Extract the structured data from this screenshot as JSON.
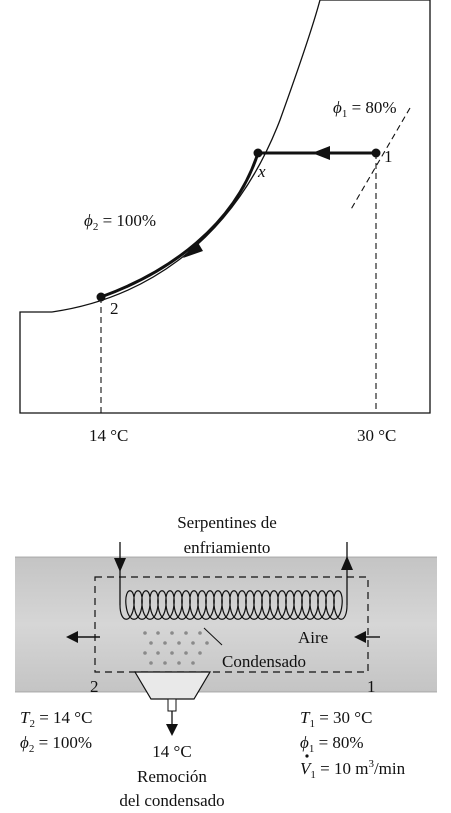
{
  "chart": {
    "phi1_symbol": "ϕ",
    "phi1_sub": "1",
    "phi1_eq": " = 80%",
    "phi2_symbol": "ϕ",
    "phi2_sub": "2",
    "phi2_eq": " = 100%",
    "state1_label": "1",
    "state2_label": "2",
    "state_x_label": "x",
    "temp_low": "14 °C",
    "temp_high": "30 °C"
  },
  "device": {
    "coils_line1": "Serpentines de",
    "coils_line2": "enfriamiento",
    "air_label": "Aire",
    "condensate_label": "Condensado",
    "section_out": "2",
    "section_in": "1",
    "outlet": {
      "t_sym": "T",
      "t_sub": "2",
      "t_eq": " = 14 °C",
      "phi_sym": "ϕ",
      "phi_sub": "2",
      "phi_eq": " = 100%"
    },
    "inlet": {
      "t_sym": "T",
      "t_sub": "1",
      "t_eq": " = 30 °C",
      "phi_sym": "ϕ",
      "phi_sub": "1",
      "phi_eq": " = 80%",
      "v_sym": "V",
      "v_sub": "1",
      "v_eq": " = 10 m",
      "v_exp": "3",
      "v_unit": "/min"
    },
    "removal_temp": "14 °C",
    "removal_line1": "Remoción",
    "removal_line2": "del condensado"
  }
}
